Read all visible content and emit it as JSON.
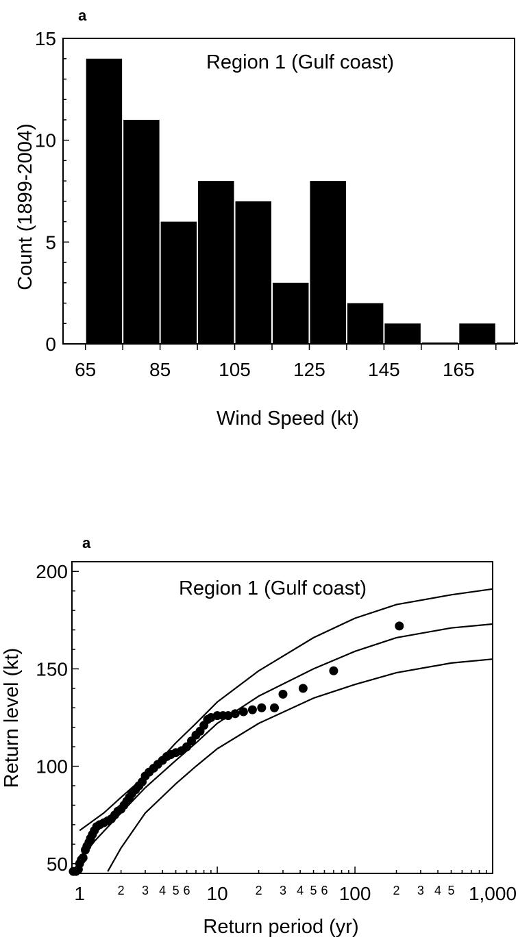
{
  "chart_data": [
    {
      "type": "bar",
      "panel_label": "a",
      "title": "Region 1 (Gulf coast)",
      "xlabel": "Wind Speed (kt)",
      "ylabel": "Count (1899-2004)",
      "xlim": [
        59,
        180
      ],
      "ylim": [
        0,
        15
      ],
      "x_tick_labels": [
        "65",
        "85",
        "105",
        "125",
        "145",
        "165"
      ],
      "y_tick_labels": [
        "0",
        "5",
        "10",
        "15"
      ],
      "bin_width": 10,
      "bins": [
        65,
        75,
        85,
        95,
        105,
        115,
        125,
        135,
        145,
        155,
        165,
        175
      ],
      "values": [
        14,
        11,
        6,
        8,
        7,
        3,
        8,
        2,
        1,
        0,
        1,
        0
      ],
      "bar_color": "#000000",
      "grid": false
    },
    {
      "type": "scatter",
      "panel_label": "a",
      "title": "Region 1 (Gulf coast)",
      "xlabel": "Return period (yr)",
      "ylabel": "Return level (kt)",
      "x_scale": "log",
      "xlim": [
        0.88,
        1000
      ],
      "ylim": [
        45,
        205
      ],
      "x_tick_labels": [
        "1",
        "10",
        "100",
        "1,000"
      ],
      "x_minor_tick_labels": [
        "2",
        "3",
        "4",
        "5",
        "6",
        "2",
        "3",
        "4",
        "5",
        "6",
        "2",
        "3",
        "4",
        "5"
      ],
      "y_tick_labels": [
        "50",
        "100",
        "150",
        "200"
      ],
      "points": [
        [
          0.9,
          46
        ],
        [
          0.94,
          46
        ],
        [
          0.98,
          47
        ],
        [
          1.0,
          50
        ],
        [
          1.03,
          52
        ],
        [
          1.06,
          53
        ],
        [
          1.1,
          57
        ],
        [
          1.13,
          59
        ],
        [
          1.17,
          61
        ],
        [
          1.2,
          63
        ],
        [
          1.24,
          65
        ],
        [
          1.28,
          67
        ],
        [
          1.33,
          69
        ],
        [
          1.4,
          70
        ],
        [
          1.5,
          71
        ],
        [
          1.6,
          72
        ],
        [
          1.7,
          73
        ],
        [
          1.8,
          75
        ],
        [
          1.9,
          77
        ],
        [
          2.0,
          78
        ],
        [
          2.1,
          80
        ],
        [
          2.2,
          82
        ],
        [
          2.3,
          84
        ],
        [
          2.4,
          86
        ],
        [
          2.55,
          88
        ],
        [
          2.7,
          90
        ],
        [
          2.85,
          92
        ],
        [
          3.0,
          95
        ],
        [
          3.2,
          97
        ],
        [
          3.45,
          99
        ],
        [
          3.7,
          101
        ],
        [
          4.0,
          103
        ],
        [
          4.3,
          105
        ],
        [
          4.6,
          106
        ],
        [
          5.0,
          107
        ],
        [
          5.5,
          108
        ],
        [
          6.0,
          110
        ],
        [
          6.5,
          113
        ],
        [
          7.0,
          116
        ],
        [
          7.5,
          118
        ],
        [
          8.0,
          121
        ],
        [
          8.5,
          124
        ],
        [
          9.0,
          125
        ],
        [
          10.0,
          126
        ],
        [
          11.0,
          126
        ],
        [
          12.0,
          126
        ],
        [
          13.5,
          127
        ],
        [
          15.5,
          128
        ],
        [
          18.0,
          129
        ],
        [
          21.0,
          130
        ],
        [
          26.0,
          130
        ],
        [
          30.0,
          137
        ],
        [
          42.0,
          140
        ],
        [
          70.0,
          149
        ],
        [
          210.0,
          172
        ]
      ],
      "lines": [
        {
          "label": "upper",
          "points": [
            [
              1.0,
              67
            ],
            [
              1.5,
              76
            ],
            [
              2,
              84
            ],
            [
              3,
              95
            ],
            [
              5,
              112
            ],
            [
              7,
              122
            ],
            [
              10,
              133
            ],
            [
              20,
              149
            ],
            [
              50,
              166
            ],
            [
              100,
              176
            ],
            [
              200,
              183
            ],
            [
              500,
              188
            ],
            [
              1000,
              191
            ]
          ]
        },
        {
          "label": "middle",
          "points": [
            [
              1.0,
              52
            ],
            [
              1.3,
              62
            ],
            [
              2,
              76
            ],
            [
              3,
              89
            ],
            [
              5,
              103
            ],
            [
              7,
              112
            ],
            [
              10,
              122
            ],
            [
              20,
              136
            ],
            [
              50,
              150
            ],
            [
              100,
              159
            ],
            [
              200,
              166
            ],
            [
              500,
              171
            ],
            [
              1000,
              173
            ]
          ]
        },
        {
          "label": "lower",
          "points": [
            [
              1.6,
              46
            ],
            [
              2,
              58
            ],
            [
              3,
              76
            ],
            [
              5,
              91
            ],
            [
              7,
              100
            ],
            [
              10,
              109
            ],
            [
              20,
              122
            ],
            [
              50,
              135
            ],
            [
              100,
              142
            ],
            [
              200,
              148
            ],
            [
              500,
              153
            ],
            [
              1000,
              155
            ]
          ]
        }
      ],
      "marker_color": "#000000",
      "line_color": "#000000",
      "grid": false
    }
  ]
}
